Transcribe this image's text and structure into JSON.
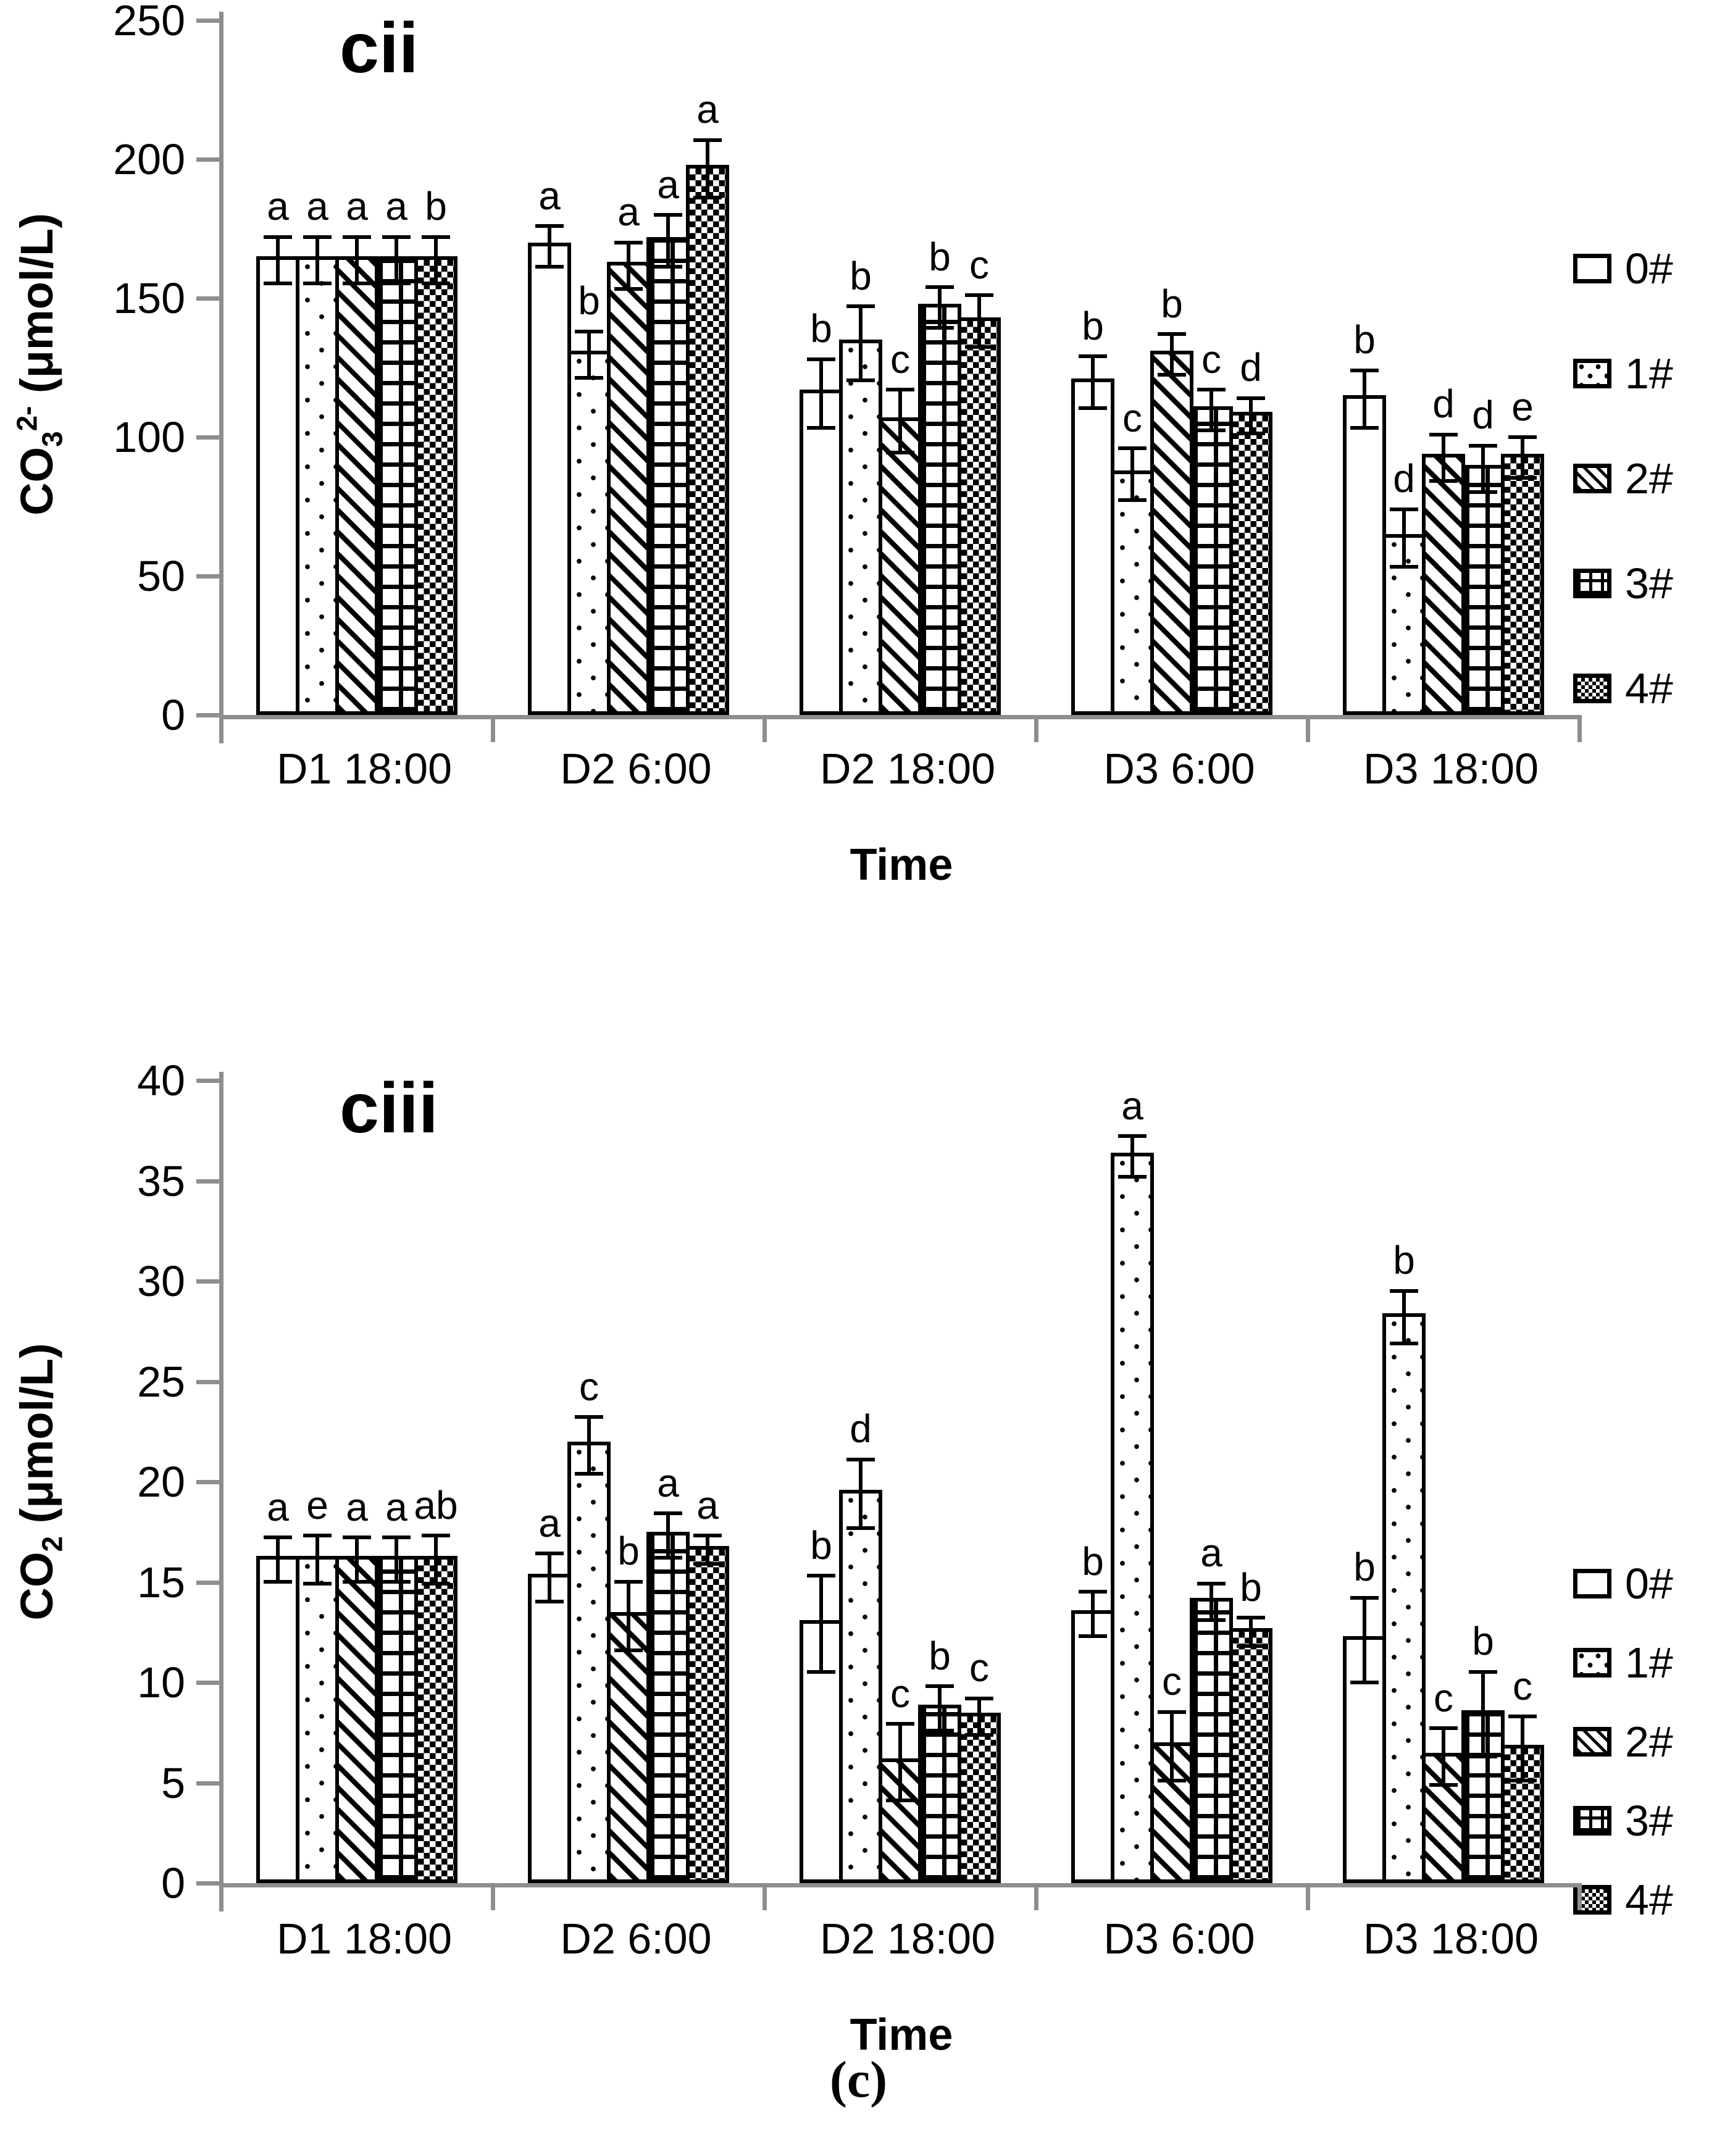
{
  "caption": "(c)",
  "legend_position": "right",
  "chart_data": [
    {
      "type": "bar",
      "title": "cii",
      "ylabel": {
        "base": "CO",
        "sub": "3",
        "sup": "2-",
        "unit": " (μmol/L)"
      },
      "xlabel": "Time",
      "categories": [
        "D1 18:00",
        "D2 6:00",
        "D2 18:00",
        "D3 6:00",
        "D3 18:00"
      ],
      "ylim": [
        0,
        250
      ],
      "yticks": [
        0,
        50,
        100,
        150,
        200,
        250
      ],
      "grid": false,
      "series": [
        {
          "name": "0#",
          "pattern": "plain",
          "values": [
            165,
            170,
            117,
            121,
            115
          ],
          "errors": [
            9,
            8,
            13,
            10,
            11
          ],
          "letters": [
            "a",
            "a",
            "b",
            "b",
            "b"
          ]
        },
        {
          "name": "1#",
          "pattern": "dots",
          "values": [
            165,
            131,
            135,
            88,
            65
          ],
          "errors": [
            9,
            9,
            14,
            10,
            11
          ],
          "letters": [
            "a",
            "b",
            "b",
            "c",
            "d"
          ]
        },
        {
          "name": "2#",
          "pattern": "diag",
          "values": [
            165,
            163,
            107,
            131,
            94
          ],
          "errors": [
            9,
            9,
            12,
            8,
            9
          ],
          "letters": [
            "a",
            "a",
            "c",
            "b",
            "d"
          ]
        },
        {
          "name": "3#",
          "pattern": "grid",
          "values": [
            165,
            172,
            148,
            111,
            90
          ],
          "errors": [
            9,
            10,
            8,
            8,
            9
          ],
          "letters": [
            "a",
            "a",
            "b",
            "c",
            "d"
          ]
        },
        {
          "name": "4#",
          "pattern": "check",
          "values": [
            165,
            198,
            143,
            109,
            94
          ],
          "errors": [
            9,
            11,
            10,
            7,
            8
          ],
          "letters": [
            "b",
            "a",
            "c",
            "d",
            "e"
          ]
        }
      ]
    },
    {
      "type": "bar",
      "title": "ciii",
      "ylabel": {
        "base": "CO",
        "sub": "2",
        "sup": "",
        "unit": " (μmol/L)"
      },
      "xlabel": "Time",
      "categories": [
        "D1 18:00",
        "D2 6:00",
        "D2 18:00",
        "D3 6:00",
        "D3 18:00"
      ],
      "ylim": [
        0,
        40
      ],
      "yticks": [
        0,
        5,
        10,
        15,
        20,
        25,
        30,
        35,
        40
      ],
      "grid": false,
      "series": [
        {
          "name": "0#",
          "pattern": "plain",
          "values": [
            16.3,
            15.4,
            13.1,
            13.6,
            12.3
          ],
          "errors": [
            1.2,
            1.3,
            2.5,
            1.2,
            2.2
          ],
          "letters": [
            "a",
            "a",
            "b",
            "b",
            "b"
          ]
        },
        {
          "name": "1#",
          "pattern": "dots",
          "values": [
            16.3,
            22.0,
            19.6,
            36.4,
            28.4
          ],
          "errors": [
            1.3,
            1.5,
            1.8,
            1.1,
            1.4
          ],
          "letters": [
            "e",
            "c",
            "d",
            "a",
            "b"
          ]
        },
        {
          "name": "2#",
          "pattern": "diag",
          "values": [
            16.3,
            13.5,
            6.2,
            7.0,
            6.5
          ],
          "errors": [
            1.2,
            1.8,
            2.0,
            1.8,
            1.5
          ],
          "letters": [
            "a",
            "b",
            "c",
            "c",
            "c"
          ]
        },
        {
          "name": "3#",
          "pattern": "grid",
          "values": [
            16.3,
            17.5,
            8.9,
            14.2,
            8.6
          ],
          "errors": [
            1.2,
            1.2,
            1.2,
            1.0,
            2.2
          ],
          "letters": [
            "a",
            "a",
            "b",
            "a",
            "b"
          ]
        },
        {
          "name": "4#",
          "pattern": "check",
          "values": [
            16.3,
            16.8,
            8.5,
            12.7,
            6.9
          ],
          "errors": [
            1.3,
            0.8,
            1.0,
            0.8,
            1.7
          ],
          "letters": [
            "ab",
            "a",
            "c",
            "b",
            "c"
          ]
        }
      ]
    }
  ]
}
